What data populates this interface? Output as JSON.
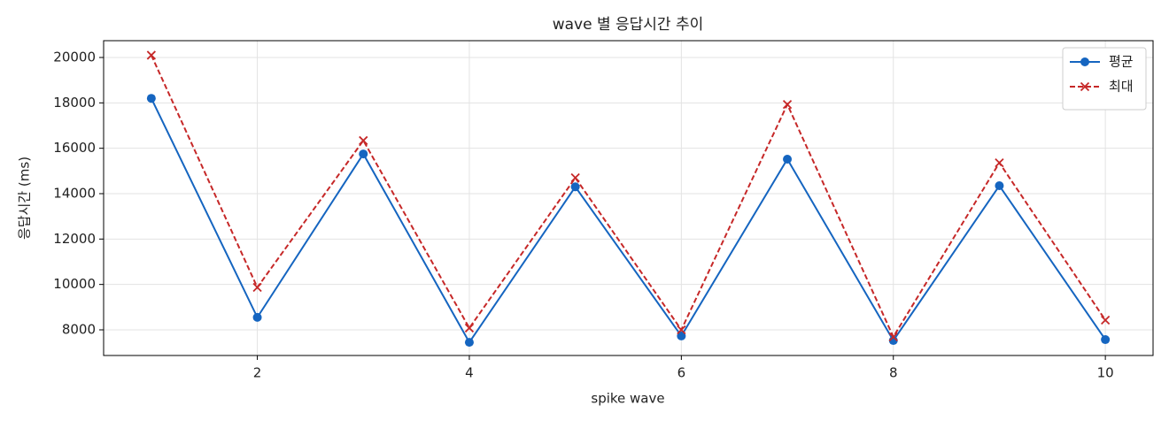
{
  "chart_data": {
    "type": "line",
    "title": "wave 별 응답시간 추이",
    "x_label": "spike wave",
    "y_label": "응답시간 (ms)",
    "x": [
      1,
      2,
      3,
      4,
      5,
      6,
      7,
      8,
      9,
      10
    ],
    "series": [
      {
        "name": "평균",
        "color": "#1565c0",
        "marker": "circle",
        "dash": "solid",
        "values": [
          18200,
          8550,
          15750,
          7450,
          14300,
          7730,
          15520,
          7530,
          14350,
          7570
        ]
      },
      {
        "name": "최대",
        "color": "#c62828",
        "marker": "x",
        "dash": "dashed",
        "values": [
          20100,
          9870,
          16340,
          8080,
          14700,
          8000,
          17930,
          7690,
          15360,
          8430
        ]
      }
    ],
    "xlim": [
      0.55,
      10.45
    ],
    "ylim": [
      6870,
      20740
    ],
    "xticks": [
      2,
      4,
      6,
      8,
      10
    ],
    "yticks": [
      8000,
      10000,
      12000,
      14000,
      16000,
      18000,
      20000
    ],
    "grid": true,
    "legend": "upper-right"
  }
}
